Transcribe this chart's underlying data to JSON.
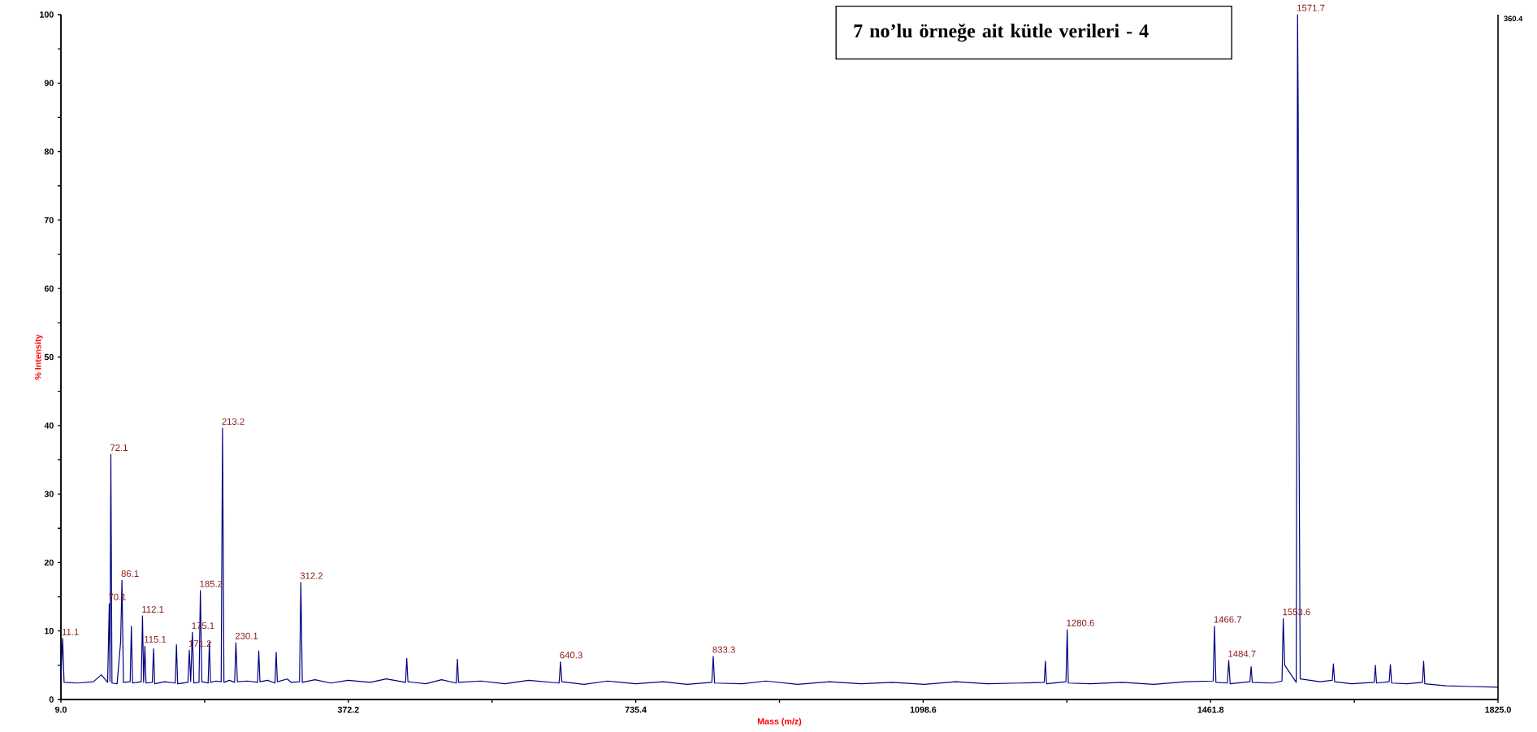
{
  "chart_data": {
    "type": "line",
    "title": "7 no’lu örneğe ait kütle verileri - 4",
    "xlabel": "Mass (m/z)",
    "ylabel": "% Intensity",
    "color": "#000080",
    "x": [
      9.0,
      11.1,
      13,
      30,
      50,
      60,
      68,
      70.1,
      71,
      72.1,
      73.5,
      80,
      84.5,
      86.1,
      88,
      96.5,
      98,
      99.5,
      105,
      110.5,
      112.1,
      113.5,
      115.1,
      116.5,
      124.5,
      126,
      127.5,
      140,
      153.5,
      155,
      156.5,
      169.5,
      171.2,
      173,
      175.1,
      177,
      183.5,
      185.2,
      187,
      195,
      196.6,
      198,
      205,
      211.5,
      213.2,
      215,
      222,
      228.5,
      230.1,
      232,
      245,
      257.5,
      259,
      260.5,
      270,
      279.5,
      281,
      282.5,
      295,
      300,
      310.5,
      312.2,
      314,
      330,
      350,
      372,
      400,
      420,
      444.5,
      446,
      447.5,
      470,
      490,
      508.5,
      510,
      511.5,
      540,
      570,
      600,
      638.5,
      640.3,
      642,
      670,
      700,
      735,
      770,
      800,
      831.5,
      833.3,
      835,
      870,
      900,
      940,
      980,
      1020,
      1060,
      1100,
      1140,
      1180,
      1220,
      1251.5,
      1253,
      1254.5,
      1279,
      1280.6,
      1282,
      1310,
      1350,
      1390,
      1430,
      1465,
      1466.7,
      1468.5,
      1483,
      1484.7,
      1486.5,
      1511.5,
      1513,
      1514.5,
      1540,
      1552,
      1553.6,
      1555.5,
      1570,
      1571.7,
      1572.5,
      1573.5,
      1575,
      1600,
      1615.5,
      1617,
      1618.5,
      1640,
      1668.5,
      1670,
      1671.5,
      1687.5,
      1689,
      1690.5,
      1710,
      1729.5,
      1731,
      1732.5,
      1760,
      1790,
      1825
    ],
    "values": [
      3.0,
      8.9,
      2.5,
      2.4,
      2.6,
      3.6,
      2.5,
      14.0,
      2.6,
      35.8,
      2.4,
      2.3,
      8.5,
      17.4,
      2.5,
      2.6,
      10.7,
      2.4,
      2.5,
      2.6,
      12.2,
      2.5,
      7.8,
      2.4,
      2.5,
      7.4,
      2.3,
      2.6,
      2.4,
      8.0,
      2.3,
      2.5,
      7.2,
      2.6,
      9.8,
      2.4,
      2.5,
      15.9,
      2.6,
      2.4,
      8.4,
      2.5,
      2.7,
      2.6,
      39.6,
      2.5,
      2.8,
      2.5,
      8.3,
      2.6,
      2.7,
      2.5,
      7.1,
      2.6,
      2.8,
      2.4,
      6.9,
      2.6,
      3.0,
      2.5,
      2.6,
      17.1,
      2.5,
      2.9,
      2.4,
      2.8,
      2.5,
      3.0,
      2.5,
      6.0,
      2.6,
      2.3,
      2.9,
      2.4,
      5.9,
      2.5,
      2.7,
      2.3,
      2.8,
      2.4,
      5.5,
      2.6,
      2.2,
      2.7,
      2.3,
      2.6,
      2.2,
      2.5,
      6.3,
      2.4,
      2.3,
      2.7,
      2.2,
      2.6,
      2.3,
      2.5,
      2.2,
      2.6,
      2.3,
      2.4,
      2.5,
      5.6,
      2.3,
      2.6,
      10.2,
      2.4,
      2.3,
      2.5,
      2.2,
      2.6,
      2.7,
      10.7,
      2.5,
      2.4,
      5.7,
      2.3,
      2.6,
      4.8,
      2.5,
      2.4,
      2.7,
      11.8,
      5.0,
      2.5,
      100,
      86,
      40,
      3.0,
      2.6,
      2.8,
      5.2,
      2.6,
      2.3,
      2.5,
      5.0,
      2.4,
      2.6,
      5.1,
      2.4,
      2.3,
      2.5,
      5.6,
      2.3,
      2.0,
      1.9,
      1.8
    ],
    "xlim": [
      9.0,
      1825.0
    ],
    "ylim": [
      0,
      100
    ],
    "xticks": [
      {
        "value": 9.0,
        "label": "9.0"
      },
      {
        "value": 190.6,
        "label": null
      },
      {
        "value": 372.2,
        "label": "372.2"
      },
      {
        "value": 553.8,
        "label": null
      },
      {
        "value": 735.4,
        "label": "735.4"
      },
      {
        "value": 917.0,
        "label": null
      },
      {
        "value": 1098.6,
        "label": "1098.6"
      },
      {
        "value": 1280.2,
        "label": null
      },
      {
        "value": 1461.8,
        "label": "1461.8"
      },
      {
        "value": 1643.4,
        "label": null
      },
      {
        "value": 1825.0,
        "label": "1825.0"
      }
    ],
    "yticks": [
      0,
      {
        "value": 5,
        "label": null
      },
      10,
      {
        "value": 15,
        "label": null
      },
      20,
      {
        "value": 25,
        "label": null
      },
      30,
      {
        "value": 35,
        "label": null
      },
      40,
      {
        "value": 45,
        "label": null
      },
      50,
      {
        "value": 55,
        "label": null
      },
      60,
      {
        "value": 65,
        "label": null
      },
      70,
      {
        "value": 75,
        "label": null
      },
      80,
      {
        "value": 85,
        "label": null
      },
      90,
      {
        "value": 95,
        "label": null
      },
      100
    ],
    "annotations": [
      {
        "text": "11.1",
        "x": 11.1,
        "y": 8.9
      },
      {
        "text": "70.1",
        "x": 70.1,
        "y": 14.0
      },
      {
        "text": "72.1",
        "x": 72.1,
        "y": 35.8
      },
      {
        "text": "86.1",
        "x": 86.1,
        "y": 17.4
      },
      {
        "text": "112.1",
        "x": 112.1,
        "y": 12.2
      },
      {
        "text": "115.1",
        "x": 115.1,
        "y": 7.8
      },
      {
        "text": "171.2",
        "x": 171.2,
        "y": 7.2
      },
      {
        "text": "175.1",
        "x": 175.1,
        "y": 9.8
      },
      {
        "text": "185.2",
        "x": 185.2,
        "y": 15.9
      },
      {
        "text": "213.2",
        "x": 213.2,
        "y": 39.6
      },
      {
        "text": "230.1",
        "x": 230.1,
        "y": 8.3
      },
      {
        "text": "312.2",
        "x": 312.2,
        "y": 17.1
      },
      {
        "text": "640.3",
        "x": 640.3,
        "y": 5.5
      },
      {
        "text": "833.3",
        "x": 833.3,
        "y": 6.3
      },
      {
        "text": "1280.6",
        "x": 1280.6,
        "y": 10.2
      },
      {
        "text": "1466.7",
        "x": 1466.7,
        "y": 10.7
      },
      {
        "text": "1484.7",
        "x": 1484.7,
        "y": 5.7
      },
      {
        "text": "1553.6",
        "x": 1553.6,
        "y": 11.8
      },
      {
        "text": "1571.7",
        "x": 1571.7,
        "y": 100
      },
      "360.4"
    ]
  }
}
